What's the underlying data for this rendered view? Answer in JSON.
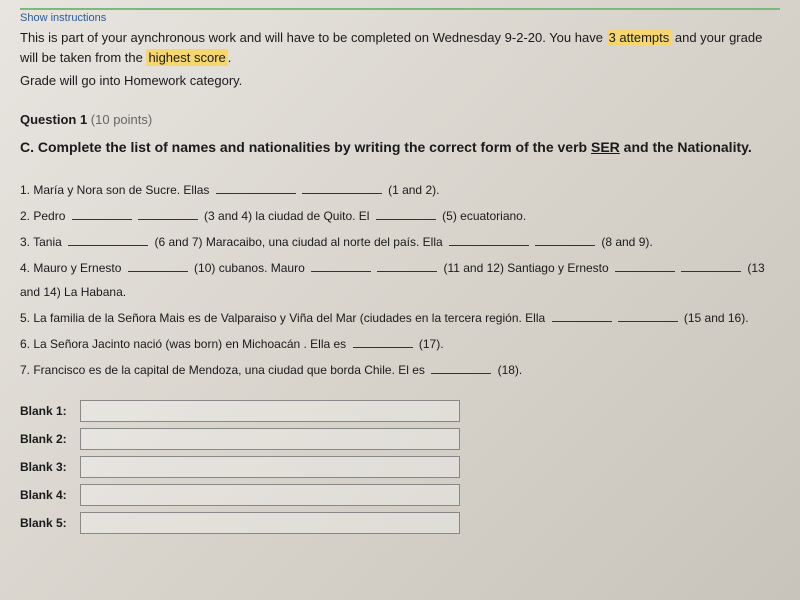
{
  "header": {
    "show_instructions": "Show instructions",
    "intro_part1": "This is part of your aynchronous work and will have to be completed on Wednesday  9-2-20. You have ",
    "highlight1": "3 attempts",
    "intro_part2": " and your grade will be taken from the ",
    "highlight2": "highest score",
    "intro_part3": ".",
    "grade_note": "Grade will go into Homework category."
  },
  "question": {
    "label": "Question 1",
    "points": " (10 points)",
    "text_part1": "C. Complete the list of names and nationalities by writing the correct form of the verb ",
    "ser_text": "SER",
    "text_part2": " and the Nationality."
  },
  "items": {
    "q1_a": "1. María y Nora son de Sucre. Ellas ",
    "q1_b": " (1 and 2).",
    "q2_a": "2. Pedro ",
    "q2_b": " (3 and 4) la ciudad de Quito. El ",
    "q2_c": " (5) ecuatoriano.",
    "q3_a": "3. Tania ",
    "q3_b": " (6 and 7) Maracaibo, una ciudad al norte del país. Ella ",
    "q3_c": " (8 and 9).",
    "q4_a": "4. Mauro y Ernesto ",
    "q4_b": " (10) cubanos. Mauro ",
    "q4_c": " (11 and 12) Santiago y Ernesto ",
    "q4_d": " (13 and 14) La Habana.",
    "q5_a": "5. La familia de la Señora Mais es de Valparaiso y Viña del Mar (ciudades en la tercera región. Ella ",
    "q5_b": " (15 and 16).",
    "q6_a": "6. La Señora Jacinto nació (was born) en Michoacán . Ella es ",
    "q6_b": " (17).",
    "q7_a": "7. Francisco es de la capital de Mendoza, una ciudad que borda Chile. El es ",
    "q7_b": " (18)."
  },
  "blanks": {
    "b1": "Blank 1:",
    "b2": "Blank 2:",
    "b3": "Blank 3:",
    "b4": "Blank 4:",
    "b5": "Blank 5:"
  }
}
